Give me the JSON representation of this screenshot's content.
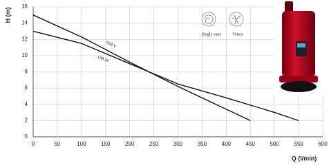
{
  "chart_data": {
    "type": "line",
    "y_label": "H (m)",
    "x_label": "Q (l/min)",
    "xlim": [
      0,
      600
    ],
    "ylim": [
      0,
      16
    ],
    "xticks": [
      0,
      50,
      100,
      150,
      200,
      250,
      300,
      350,
      400,
      450,
      500,
      550,
      600
    ],
    "yticks": [
      0,
      2,
      4,
      6,
      8,
      10,
      12,
      14,
      16
    ],
    "grid": true,
    "series": [
      {
        "name": "16B V",
        "color": "#111111",
        "x": [
          0,
          100,
          200,
          300,
          400,
          450
        ],
        "values": [
          15,
          12.3,
          9.2,
          6.2,
          3.4,
          2
        ]
      },
      {
        "name": "13B M",
        "color": "#111111",
        "x": [
          0,
          100,
          200,
          300,
          400,
          500,
          550
        ],
        "values": [
          13,
          11.5,
          9,
          6.5,
          4.8,
          3.0,
          2
        ]
      }
    ],
    "annotations": [
      "Single vane",
      "Vortex"
    ]
  }
}
